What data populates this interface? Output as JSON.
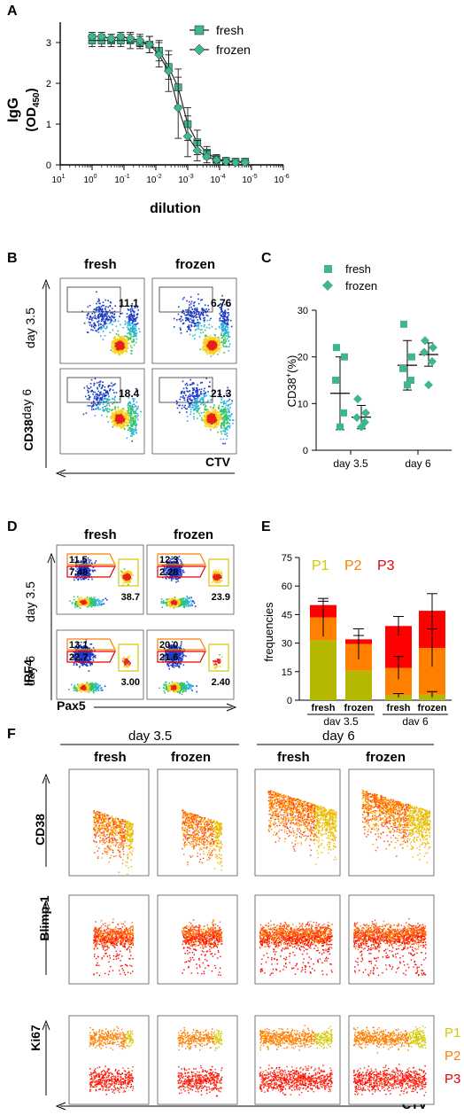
{
  "panels": {
    "A": "A",
    "B": "B",
    "C": "C",
    "D": "D",
    "E": "E",
    "F": "F"
  },
  "colors": {
    "green": "#3fb68e",
    "dark": "#1a1a1a",
    "p1": "#b5b800",
    "p2": "#ff7f00",
    "p3": "#ff0000",
    "p1text": "#d4c800",
    "p2text": "#ff7f00",
    "p3text": "#e60000"
  },
  "chart_data": [
    {
      "panel": "A",
      "type": "line",
      "ylabel": "IgG",
      "ylabel_sub": "(OD",
      "ylabel_subscript": "450",
      "ylabel_close": ")",
      "xlabel": "dilution",
      "x_ticks": [
        {
          "b": "10",
          "e": "1"
        },
        {
          "b": "10",
          "e": "0"
        },
        {
          "b": "10",
          "e": "-1"
        },
        {
          "b": "10",
          "e": "-2"
        },
        {
          "b": "10",
          "e": "-3"
        },
        {
          "b": "10",
          "e": "-4"
        },
        {
          "b": "10",
          "e": "-5"
        },
        {
          "b": "10",
          "e": "-6"
        }
      ],
      "y_ticks": [
        "0",
        "1",
        "2",
        "3"
      ],
      "ylim": [
        0,
        3.5
      ],
      "xlim_log10": [
        1,
        -6
      ],
      "series": [
        {
          "name": "fresh",
          "marker": "square",
          "log10x": [
            0,
            -0.3,
            -0.6,
            -0.9,
            -1.2,
            -1.5,
            -1.8,
            -2.1,
            -2.4,
            -2.7,
            -3.0,
            -3.3,
            -3.6,
            -3.9,
            -4.2,
            -4.5,
            -4.8
          ],
          "y": [
            3.05,
            3.05,
            3.05,
            3.05,
            3.05,
            3.0,
            2.95,
            2.8,
            2.4,
            1.9,
            1.0,
            0.55,
            0.3,
            0.15,
            0.1,
            0.08,
            0.08
          ],
          "err": [
            0.15,
            0.15,
            0.15,
            0.15,
            0.2,
            0.15,
            0.2,
            0.25,
            0.3,
            0.45,
            0.4,
            0.3,
            0.15,
            0.1,
            0.05,
            0.05,
            0.05
          ]
        },
        {
          "name": "frozen",
          "marker": "diamond",
          "log10x": [
            0,
            -0.3,
            -0.6,
            -0.9,
            -1.2,
            -1.5,
            -1.8,
            -2.1,
            -2.4,
            -2.7,
            -3.0,
            -3.3,
            -3.6,
            -3.9,
            -4.2,
            -4.5,
            -4.8
          ],
          "y": [
            3.15,
            3.15,
            3.1,
            3.15,
            3.1,
            3.05,
            2.95,
            2.7,
            2.3,
            1.4,
            0.7,
            0.35,
            0.2,
            0.12,
            0.08,
            0.06,
            0.06
          ],
          "err": [
            0.1,
            0.1,
            0.1,
            0.1,
            0.1,
            0.15,
            0.2,
            0.3,
            0.5,
            0.75,
            0.5,
            0.25,
            0.15,
            0.08,
            0.05,
            0.04,
            0.04
          ]
        }
      ]
    },
    {
      "panel": "C",
      "type": "scatter",
      "ylabel": "CD38",
      "ylabel_sup": "+",
      "ylabel_rest": "(%)",
      "categories": [
        "day 3.5",
        "day 6"
      ],
      "y_ticks": [
        "0",
        "10",
        "20",
        "30"
      ],
      "ylim": [
        0,
        30
      ],
      "series": [
        {
          "name": "fresh",
          "marker": "square",
          "points": {
            "day 3.5": [
              22,
              20,
              15,
              8,
              5
            ],
            "day 6": [
              27,
              20,
              17.5,
              15,
              14
            ]
          },
          "mean": {
            "day 3.5": 12.2,
            "day 6": 18.2
          },
          "sd": {
            "day 3.5": 7.8,
            "day 6": 5.3
          }
        },
        {
          "name": "frozen",
          "marker": "diamond",
          "points": {
            "day 3.5": [
              11,
              8,
              7,
              6,
              5
            ],
            "day 6": [
              23.5,
              22,
              21,
              19,
              14
            ]
          },
          "mean": {
            "day 3.5": 7.1,
            "day 6": 20.5
          },
          "sd": {
            "day 3.5": 2.5,
            "day 6": 2.5
          }
        }
      ]
    },
    {
      "panel": "E",
      "type": "bar",
      "ylabel": "frequencies",
      "categories": [
        "fresh",
        "frozen",
        "fresh",
        "frozen"
      ],
      "groups": [
        {
          "label": "day 3.5",
          "span": [
            0,
            1
          ]
        },
        {
          "label": "day 6",
          "span": [
            2,
            3
          ]
        }
      ],
      "y_ticks": [
        "0",
        "15",
        "30",
        "45",
        "60",
        "75"
      ],
      "ylim": [
        0,
        75
      ],
      "legend": [
        "P1",
        "P2",
        "P3"
      ],
      "series": [
        {
          "name": "P1",
          "values": [
            31.5,
            15.5,
            2.5,
            3
          ]
        },
        {
          "name": "P2",
          "values": [
            12,
            14,
            14.5,
            24.5
          ]
        },
        {
          "name": "P3",
          "values": [
            6.5,
            2.5,
            22,
            19.5
          ]
        }
      ],
      "err_top": [
        2,
        2,
        5,
        9
      ],
      "err_p2": [
        10,
        8,
        6,
        10
      ],
      "err_p1": [
        0,
        0,
        1,
        1.5
      ]
    }
  ],
  "flow_B": {
    "col_labels": [
      "fresh",
      "frozen"
    ],
    "row_labels": [
      "day 3.5",
      "day 6"
    ],
    "values": [
      "11.1",
      "6.76",
      "18.4",
      "21.3"
    ],
    "y_axis": "CD38",
    "x_axis": "CTV"
  },
  "flow_D": {
    "col_labels": [
      "fresh",
      "frozen"
    ],
    "row_labels": [
      "day 3.5",
      "day 6"
    ],
    "gates": [
      {
        "p3": "11.5",
        "p2": "7.48",
        "p1": "38.7"
      },
      {
        "p3": "12.3",
        "p2": "2.28",
        "p1": "23.9"
      },
      {
        "p3": "13.1",
        "p2": "22.7",
        "p1": "3.00"
      },
      {
        "p3": "20.0",
        "p2": "21.6",
        "p1": "2.40"
      }
    ],
    "y_axis": "IRF4",
    "x_axis": "Pax5"
  },
  "flow_F": {
    "group_labels": [
      "day 3.5",
      "day 6"
    ],
    "col_labels": [
      "fresh",
      "frozen",
      "fresh",
      "frozen"
    ],
    "row_labels": [
      "CD38",
      "Blimp-1",
      "Ki67"
    ],
    "legend": [
      "P1",
      "P2",
      "P3"
    ],
    "x_axis": "CTV"
  }
}
